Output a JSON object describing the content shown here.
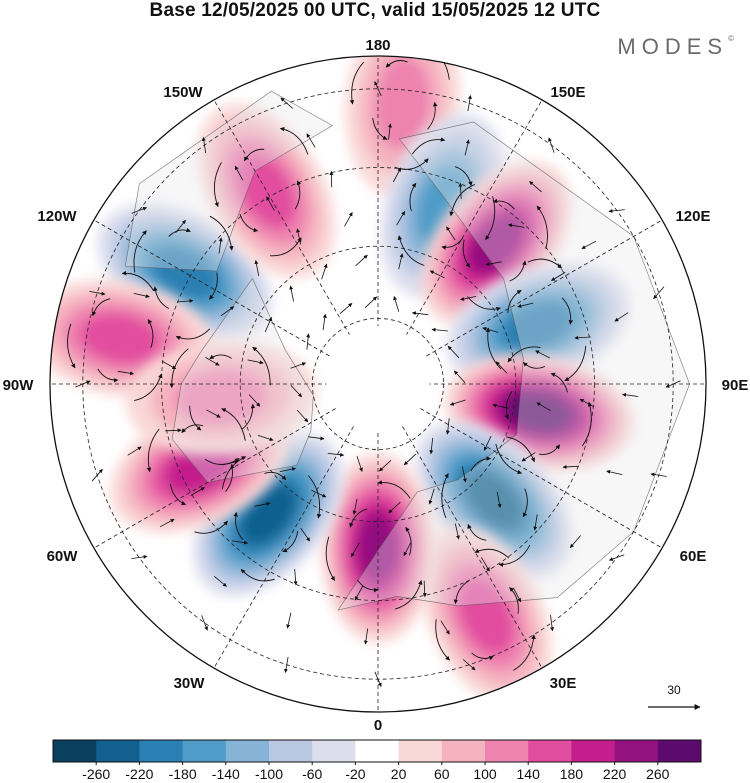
{
  "header": {
    "title": "Base 12/05/2025 00 UTC, valid 15/05/2025 12 UTC",
    "brand": "MODES",
    "brand_mark": "©"
  },
  "map": {
    "projection": "north-polar-stereographic",
    "longitude_labels": [
      {
        "text": "180",
        "lon": 180
      },
      {
        "text": "150E",
        "lon": 150
      },
      {
        "text": "120E",
        "lon": 120
      },
      {
        "text": "90E",
        "lon": 90
      },
      {
        "text": "60E",
        "lon": 60
      },
      {
        "text": "30E",
        "lon": 30
      },
      {
        "text": "0",
        "lon": 0
      },
      {
        "text": "30W",
        "lon": -30
      },
      {
        "text": "60W",
        "lon": -60
      },
      {
        "text": "90W",
        "lon": -90
      },
      {
        "text": "120W",
        "lon": -120
      },
      {
        "text": "150W",
        "lon": -150
      }
    ],
    "anomaly_centers": [
      {
        "sign": "negative",
        "lon": -120,
        "strength": -200
      },
      {
        "sign": "positive",
        "lon": -100,
        "strength": 140
      },
      {
        "sign": "positive",
        "lon": -150,
        "strength": 140
      },
      {
        "sign": "positive",
        "lon": 175,
        "strength": 100
      },
      {
        "sign": "negative",
        "lon": 160,
        "strength": -140
      },
      {
        "sign": "positive",
        "lon": 140,
        "strength": 240
      },
      {
        "sign": "negative",
        "lon": 110,
        "strength": -200
      },
      {
        "sign": "positive",
        "lon": 80,
        "strength": 260
      },
      {
        "sign": "negative",
        "lon": 45,
        "strength": -220
      },
      {
        "sign": "positive",
        "lon": 25,
        "strength": 140
      },
      {
        "sign": "positive",
        "lon": 0,
        "strength": 240
      },
      {
        "sign": "negative",
        "lon": -40,
        "strength": -220
      },
      {
        "sign": "positive",
        "lon": -65,
        "strength": 180
      },
      {
        "sign": "positive",
        "lon": -85,
        "strength": 100
      }
    ],
    "wind_reference": {
      "value": "30"
    }
  },
  "colorbar": {
    "colors": [
      "#08405e",
      "#11608f",
      "#2a7fb3",
      "#4f9cc8",
      "#87b3d6",
      "#b9c9e4",
      "#dcdeee",
      "#ffffff",
      "#f9d7d6",
      "#f5b2bf",
      "#ee83b0",
      "#e24e9f",
      "#c41e8c",
      "#941180",
      "#5d0a6e"
    ],
    "tick_labels": [
      "-260",
      "-220",
      "-180",
      "-140",
      "-100",
      "-60",
      "-20",
      "20",
      "60",
      "100",
      "140",
      "180",
      "220",
      "260"
    ]
  }
}
